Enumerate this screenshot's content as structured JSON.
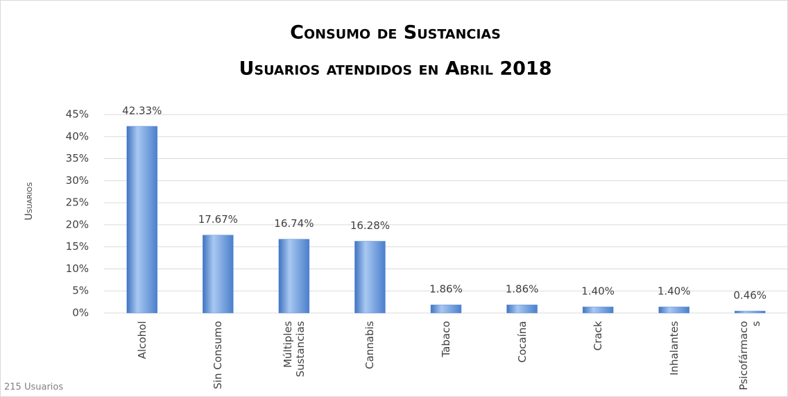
{
  "chart_data": {
    "type": "bar",
    "title": "Consumo de Sustancias",
    "subtitle": "Usuarios atendidos en Abril 2018",
    "y_label": "Usuarios",
    "footnote": "215 Usuarios",
    "categories": [
      "Alcohol",
      "Sin Consumo",
      "Múltiples Sustancias",
      "Cannabis",
      "Tabaco",
      "Cocaína",
      "Crack",
      "Inhalantes",
      "Psicofármacos"
    ],
    "values": [
      42.33,
      17.67,
      16.74,
      16.28,
      1.86,
      1.86,
      1.4,
      1.4,
      0.46
    ],
    "value_labels": [
      "42.33%",
      "17.67%",
      "16.74%",
      "16.28%",
      "1.86%",
      "1.86%",
      "1.40%",
      "1.40%",
      "0.46%"
    ],
    "color": "#5b8fd8",
    "ylim": [
      0,
      45
    ],
    "yticks": [
      {
        "value": 0,
        "label": "0%"
      },
      {
        "value": 5,
        "label": "5%"
      },
      {
        "value": 10,
        "label": "10%"
      },
      {
        "value": 15,
        "label": "15%"
      },
      {
        "value": 20,
        "label": "20%"
      },
      {
        "value": 25,
        "label": "25%"
      },
      {
        "value": 30,
        "label": "30%"
      },
      {
        "value": 35,
        "label": "35%"
      },
      {
        "value": 40,
        "label": "40%"
      },
      {
        "value": 45,
        "label": "45%"
      }
    ],
    "grid": true
  }
}
